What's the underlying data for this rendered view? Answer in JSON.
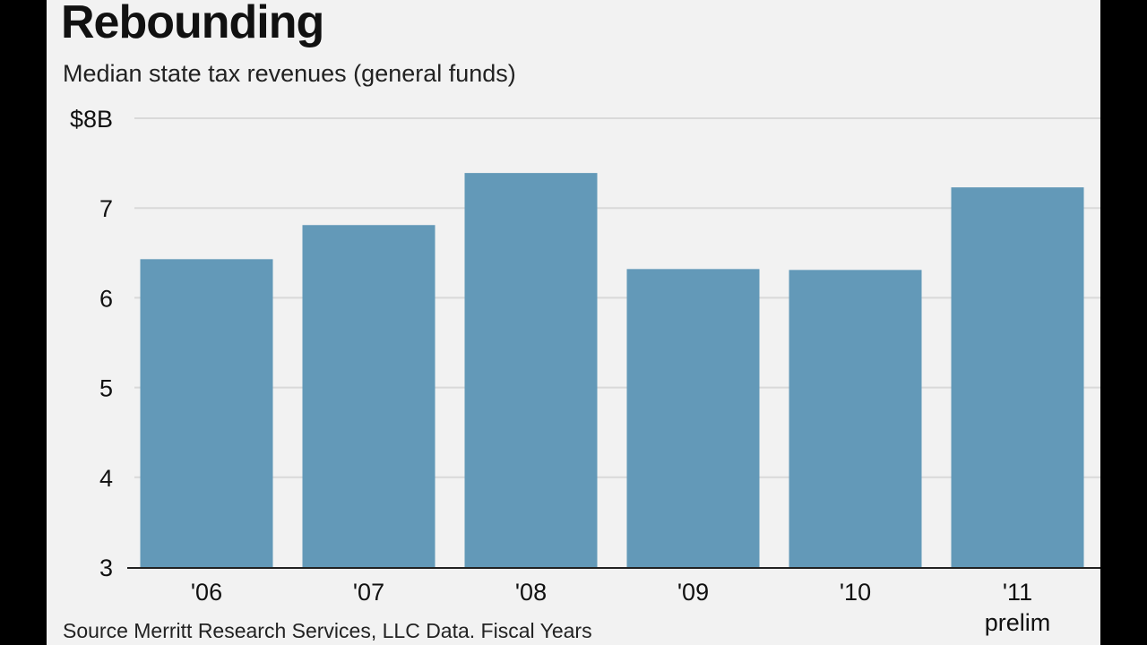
{
  "chart_data": {
    "type": "bar",
    "title": "Rebounding",
    "subtitle": "Median state tax revenues (general funds)",
    "categories": [
      "'06",
      "'07",
      "'08",
      "'09",
      "'10",
      "'11"
    ],
    "category_notes": [
      "",
      "",
      "",
      "",
      "",
      "prelim"
    ],
    "values": [
      6.43,
      6.81,
      7.39,
      6.32,
      6.31,
      7.23
    ],
    "ylim": [
      3,
      8
    ],
    "yticks": [
      3,
      4,
      5,
      6,
      7,
      8
    ],
    "ytick_labels": [
      "3",
      "4",
      "5",
      "6",
      "7",
      "$8B"
    ],
    "xlabel": "",
    "ylabel": "",
    "grid": true,
    "source": "Source Merritt Research Services, LLC Data. Fiscal Years",
    "colors": {
      "bar": "#6399b8",
      "grid": "#d9d9d9",
      "background": "#f2f2f2",
      "frame": "#000000"
    }
  }
}
